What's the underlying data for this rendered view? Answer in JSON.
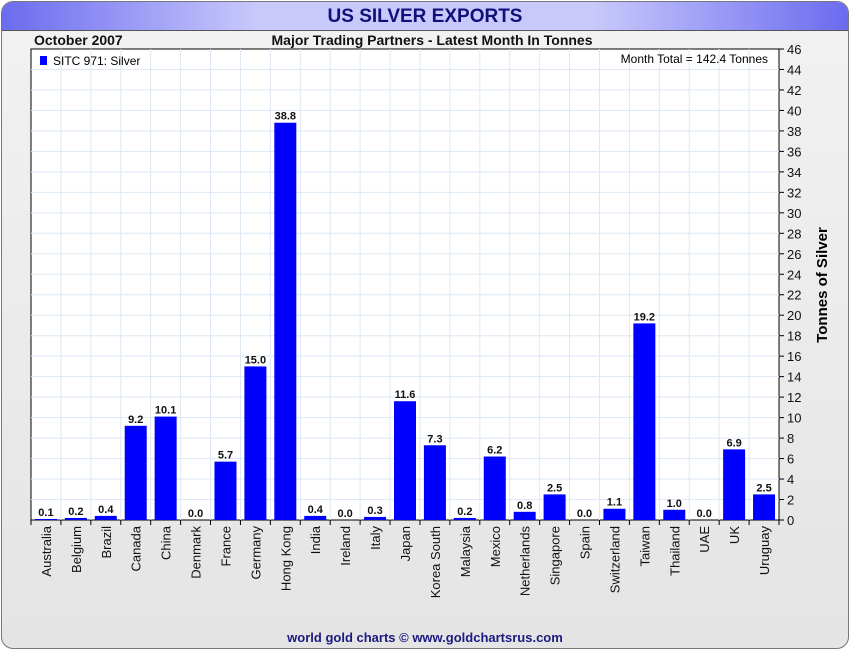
{
  "header": {
    "title": "US SILVER EXPORTS",
    "period": "October 2007",
    "subtitle": "Major Trading Partners - Latest Month In Tonnes",
    "month_total": "Month Total = 142.4 Tonnes"
  },
  "footer": {
    "credit": "world gold charts © www.goldchartsrus.com"
  },
  "colors": {
    "bar": "#0000ff",
    "grid": "#dde8f4"
  },
  "chart_data": {
    "type": "bar",
    "title": "US SILVER EXPORTS",
    "subtitle": "Major Trading Partners - Latest Month In Tonnes",
    "ylabel": "Tonnes of Silver",
    "xlabel": "",
    "ylim": [
      0,
      46
    ],
    "yticks": [
      0,
      2,
      4,
      6,
      8,
      10,
      12,
      14,
      16,
      18,
      20,
      22,
      24,
      26,
      28,
      30,
      32,
      34,
      36,
      38,
      40,
      42,
      44,
      46
    ],
    "legend": {
      "label": "SITC 971: Silver",
      "placement": "top-left"
    },
    "grid": true,
    "categories": [
      "Australia",
      "Belgium",
      "Brazil",
      "Canada",
      "China",
      "Denmark",
      "France",
      "Germany",
      "Hong Kong",
      "India",
      "Ireland",
      "Italy",
      "Japan",
      "Korea South",
      "Malaysia",
      "Mexico",
      "Netherlands",
      "Singapore",
      "Spain",
      "Switzerland",
      "Taiwan",
      "Thailand",
      "UAE",
      "UK",
      "Uruguay"
    ],
    "values": [
      0.1,
      0.2,
      0.4,
      9.2,
      10.1,
      0.0,
      5.7,
      15.0,
      38.8,
      0.4,
      0.0,
      0.3,
      11.6,
      7.3,
      0.2,
      6.2,
      0.8,
      2.5,
      0.0,
      1.1,
      19.2,
      1.0,
      0.0,
      6.9,
      2.5
    ]
  }
}
